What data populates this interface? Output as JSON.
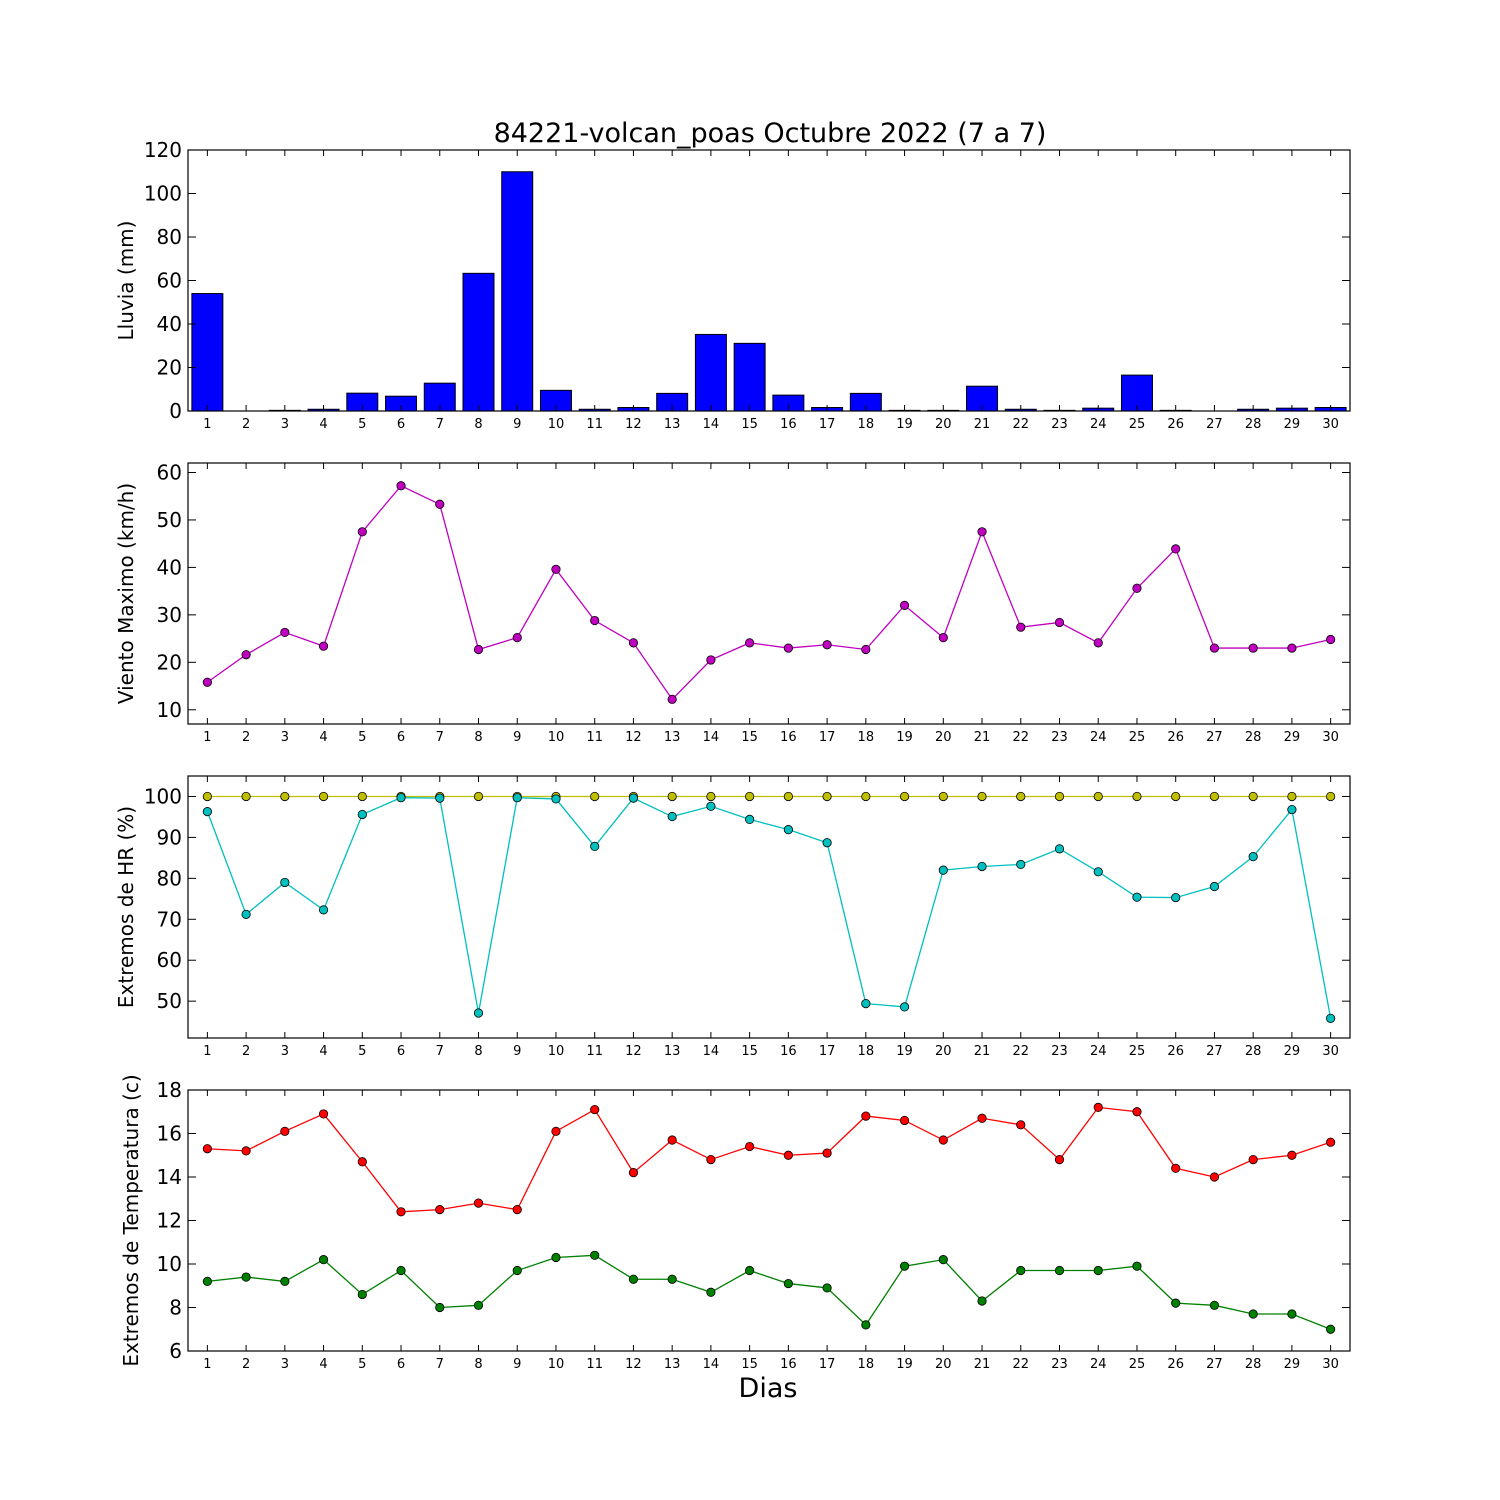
{
  "figure": {
    "title": "84221-volcan_poas Octubre 2022  (7 a 7)",
    "xlabel": "Dias"
  },
  "chart_data": [
    {
      "type": "bar",
      "id": "lluvia",
      "ylabel": "Lluvia (mm)",
      "ylim": [
        0,
        120
      ],
      "yticks": [
        0,
        20,
        40,
        60,
        80,
        100,
        120
      ],
      "categories": [
        1,
        2,
        3,
        4,
        5,
        6,
        7,
        8,
        9,
        10,
        11,
        12,
        13,
        14,
        15,
        16,
        17,
        18,
        19,
        20,
        21,
        22,
        23,
        24,
        25,
        26,
        27,
        28,
        29,
        30
      ],
      "series": [
        {
          "color": "#0000ff",
          "values": [
            54,
            0,
            0.3,
            0.8,
            8.2,
            6.8,
            12.8,
            63.3,
            110,
            9.5,
            0.8,
            1.6,
            8.1,
            35.2,
            31.1,
            7.3,
            1.6,
            8.1,
            0.3,
            0.3,
            11.4,
            0.8,
            0.3,
            1.3,
            16.5,
            0.3,
            0,
            0.8,
            1.3,
            1.6
          ]
        }
      ]
    },
    {
      "type": "line",
      "id": "viento",
      "ylabel": "Viento Maximo (km/h)",
      "ylim": [
        7,
        62
      ],
      "yticks": [
        10,
        20,
        30,
        40,
        50,
        60
      ],
      "categories": [
        1,
        2,
        3,
        4,
        5,
        6,
        7,
        8,
        9,
        10,
        11,
        12,
        13,
        14,
        15,
        16,
        17,
        18,
        19,
        20,
        21,
        22,
        23,
        24,
        25,
        26,
        27,
        28,
        29,
        30
      ],
      "series": [
        {
          "color": "#bf00bf",
          "values": [
            15.8,
            21.6,
            26.3,
            23.4,
            47.5,
            57.2,
            53.3,
            22.7,
            25.2,
            39.6,
            28.8,
            24.1,
            12.2,
            20.5,
            24.1,
            23.0,
            23.7,
            22.7,
            32.0,
            25.2,
            47.5,
            27.4,
            28.4,
            24.1,
            35.6,
            43.9,
            23.0,
            23.0,
            23.0,
            24.8
          ]
        }
      ]
    },
    {
      "type": "line",
      "id": "humedad",
      "ylabel": "Extremos de HR (%)",
      "ylim": [
        41,
        105
      ],
      "yticks": [
        50,
        60,
        70,
        80,
        90,
        100
      ],
      "categories": [
        1,
        2,
        3,
        4,
        5,
        6,
        7,
        8,
        9,
        10,
        11,
        12,
        13,
        14,
        15,
        16,
        17,
        18,
        19,
        20,
        21,
        22,
        23,
        24,
        25,
        26,
        27,
        28,
        29,
        30
      ],
      "series": [
        {
          "color": "#bfbf00",
          "values": [
            100,
            100,
            100,
            100,
            100,
            100,
            100,
            100,
            100,
            100,
            100,
            100,
            100,
            100,
            100,
            100,
            100,
            100,
            100,
            100,
            100,
            100,
            100,
            100,
            100,
            100,
            100,
            100,
            100,
            100
          ]
        },
        {
          "color": "#00bfbf",
          "values": [
            96.3,
            71.2,
            79.0,
            72.3,
            95.6,
            99.7,
            99.6,
            47.1,
            99.7,
            99.4,
            87.8,
            99.6,
            95.1,
            97.6,
            94.4,
            91.9,
            88.7,
            49.4,
            48.6,
            82.0,
            82.9,
            83.4,
            87.2,
            81.6,
            75.4,
            75.3,
            78.0,
            85.3,
            96.8,
            45.8
          ]
        }
      ]
    },
    {
      "type": "line",
      "id": "temperatura",
      "ylabel": "Extremos de Temperatura (c)",
      "ylim": [
        6,
        18
      ],
      "yticks": [
        6,
        8,
        10,
        12,
        14,
        16,
        18
      ],
      "categories": [
        1,
        2,
        3,
        4,
        5,
        6,
        7,
        8,
        9,
        10,
        11,
        12,
        13,
        14,
        15,
        16,
        17,
        18,
        19,
        20,
        21,
        22,
        23,
        24,
        25,
        26,
        27,
        28,
        29,
        30
      ],
      "series": [
        {
          "color": "#ff0000",
          "values": [
            15.3,
            15.2,
            16.1,
            16.9,
            14.7,
            12.4,
            12.5,
            12.8,
            12.5,
            16.1,
            17.1,
            14.2,
            15.7,
            14.8,
            15.4,
            15.0,
            15.1,
            16.8,
            16.6,
            15.7,
            16.7,
            16.4,
            14.8,
            17.2,
            17.0,
            14.4,
            14.0,
            14.8,
            15.0,
            15.6
          ]
        },
        {
          "color": "#008000",
          "values": [
            9.2,
            9.4,
            9.2,
            10.2,
            8.6,
            9.7,
            8.0,
            8.1,
            9.7,
            10.3,
            10.4,
            9.3,
            9.3,
            8.7,
            9.7,
            9.1,
            8.9,
            7.2,
            9.9,
            10.2,
            8.3,
            9.7,
            9.7,
            9.7,
            9.9,
            8.2,
            8.1,
            7.7,
            7.7,
            7.0
          ]
        }
      ]
    }
  ]
}
